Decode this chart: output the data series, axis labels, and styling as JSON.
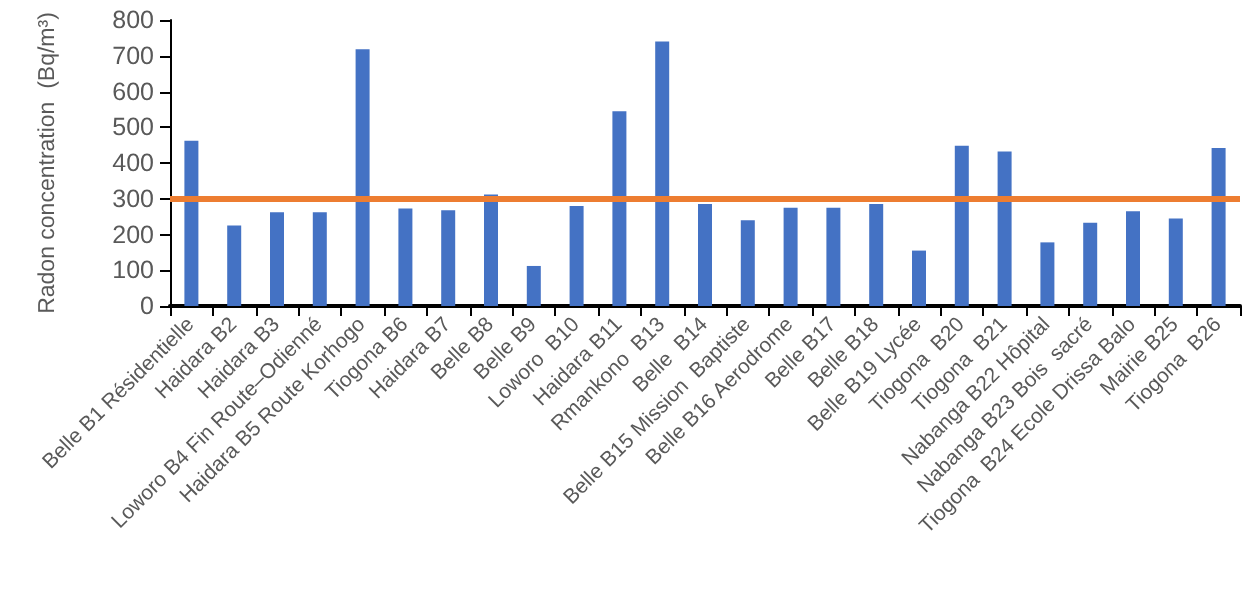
{
  "chart_data": {
    "type": "bar",
    "ylabel": "Radon concentration  (Bq/m³)",
    "categories": [
      "Belle B1 Résidentielle",
      "Haidara B2",
      "Haidara B3",
      "Loworo B4 Fin Route–Odienné",
      "Haidara B5 Route Korhogo",
      "Tiogona B6",
      "Haidara B7",
      "Belle B8",
      "Belle B9",
      "Loworo  B10",
      "Haidara B11",
      "Rmankono  B13",
      "Belle  B14",
      "Belle B15 Mission  Baptiste",
      "Belle B16 Aerodrome",
      "Belle B17",
      "Belle B18",
      "Belle B19 Lycée",
      "Tiogona  B20",
      "Tiogona  B21",
      "Nabanga B22 Hôpital",
      "Nabanga B23 Bois  sacré",
      "Tiogona  B24 Ecole Drissa Balo",
      "Mairie B25",
      "Tiogona  B26"
    ],
    "values": [
      462,
      225,
      262,
      262,
      718,
      273,
      268,
      312,
      112,
      280,
      545,
      740,
      285,
      240,
      275,
      275,
      285,
      155,
      448,
      432,
      178,
      233,
      265,
      245,
      442
    ],
    "color": "#4472c4",
    "ylim": [
      0,
      800
    ],
    "yticks": [
      0,
      100,
      200,
      300,
      400,
      500,
      600,
      700,
      800
    ],
    "grid": false,
    "ref_lines": [
      {
        "axis": "y",
        "value": 300,
        "color": "#ed7d31",
        "line_style": "solid"
      }
    ]
  }
}
